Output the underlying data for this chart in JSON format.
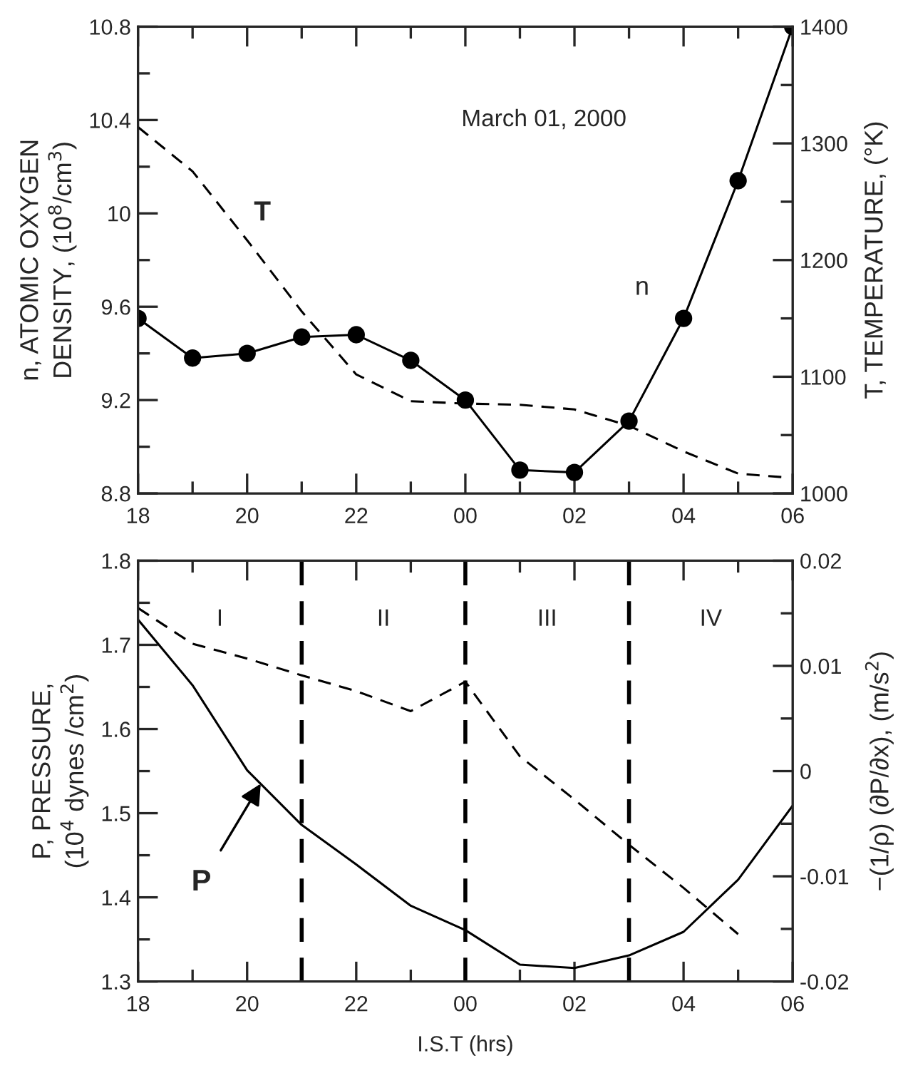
{
  "chart_data": [
    {
      "type": "line",
      "ylabel": "n, ATOMIC OXYGEN\nDENSITY, (10$^{8}$/cm$^{3}$)",
      "y2label": "T, TEMPERATURE, (°K)",
      "x": [
        "2000-03-01T18:00",
        "2000-03-01T19:00",
        "2000-03-01T20:00",
        "2000-03-01T21:00",
        "2000-03-01T22:00",
        "2000-03-01T23:00",
        "2000-03-02T00:00",
        "2000-03-02T01:00",
        "2000-03-02T02:00",
        "2000-03-02T03:00",
        "2000-03-02T04:00",
        "2000-03-02T05:00",
        "2000-03-02T06:00"
      ],
      "series": [
        {
          "color": "#000000",
          "marker": "circle",
          "line_style": "solid",
          "values": [
            9.55,
            9.38,
            9.4,
            9.47,
            9.48,
            9.37,
            9.2,
            8.9,
            8.89,
            9.11,
            9.55,
            10.14,
            10.8
          ]
        },
        {
          "color": "#000000",
          "marker": "none",
          "line_style": "dashed",
          "axis": "y2",
          "x": [
            "2000-03-01T18:00",
            "2000-03-01T19:00",
            "2000-03-01T20:00",
            "2000-03-01T21:00",
            "2000-03-01T22:00",
            "2000-03-01T23:00",
            "2000-03-02T00:00",
            "2000-03-02T01:00",
            "2000-03-02T02:00",
            "2000-03-02T03:00",
            "2000-03-02T04:00",
            "2000-03-02T05:00",
            "2000-03-02T05:48"
          ],
          "values": [
            1314,
            1276,
            1217,
            1156,
            1102,
            1079,
            1077,
            1076,
            1072,
            1058,
            1036,
            1017,
            1014
          ]
        }
      ],
      "xlim": [
        "2000-03-01T18:00",
        "2000-03-02T06:00"
      ],
      "xticks": [
        {
          "value": "2000-03-01T18:00",
          "label": "18"
        },
        {
          "value": "2000-03-01T19:00",
          "label": null
        },
        {
          "value": "2000-03-01T20:00",
          "label": "20"
        },
        {
          "value": "2000-03-01T21:00",
          "label": null
        },
        {
          "value": "2000-03-01T22:00",
          "label": "22"
        },
        {
          "value": "2000-03-01T23:00",
          "label": null
        },
        {
          "value": "2000-03-02T00:00",
          "label": "00"
        },
        {
          "value": "2000-03-02T01:00",
          "label": null
        },
        {
          "value": "2000-03-02T02:00",
          "label": "02"
        },
        {
          "value": "2000-03-02T03:00",
          "label": null
        },
        {
          "value": "2000-03-02T04:00",
          "label": "04"
        },
        {
          "value": "2000-03-02T05:00",
          "label": null
        },
        {
          "value": "2000-03-02T06:00",
          "label": "06"
        }
      ],
      "ylim": [
        8.8,
        10.8
      ],
      "yticks": [
        8.8,
        {
          "value": 9.0,
          "label": null
        },
        9.2,
        {
          "value": 9.4,
          "label": null
        },
        9.6,
        {
          "value": 9.8,
          "label": null
        },
        10,
        {
          "value": 10.2,
          "label": null
        },
        10.4,
        {
          "value": 10.6,
          "label": null
        },
        10.8
      ],
      "y2lim": [
        1000,
        1400
      ],
      "y2ticks": [
        1000,
        {
          "value": 1050,
          "label": null
        },
        1100,
        {
          "value": 1150,
          "label": null
        },
        1200,
        {
          "value": 1250,
          "label": null
        },
        1300,
        {
          "value": 1350,
          "label": null
        },
        1400
      ],
      "annotations": [
        "March 01, 2000",
        "T",
        "n"
      ],
      "grid": false,
      "legend": false
    },
    {
      "type": "line",
      "xlabel": "I.S.T (hrs)",
      "ylabel": "P, PRESSURE,\n(10$^{4}$ dynes /cm$^{2}$)",
      "y2label": "−(1/ρ) (∂P/∂x), (m/s$^{2}$)",
      "x": [
        "2000-03-01T18:00",
        "2000-03-01T19:00",
        "2000-03-01T20:00",
        "2000-03-01T21:00",
        "2000-03-01T22:00",
        "2000-03-01T23:00",
        "2000-03-02T00:00",
        "2000-03-02T01:00",
        "2000-03-02T02:00",
        "2000-03-02T03:00",
        "2000-03-02T04:00",
        "2000-03-02T05:00",
        "2000-03-02T06:00"
      ],
      "series": [
        {
          "color": "#000000",
          "marker": "none",
          "line_style": "solid",
          "values": [
            1.73,
            1.652,
            1.551,
            1.486,
            1.439,
            1.39,
            1.361,
            1.32,
            1.316,
            1.331,
            1.359,
            1.421,
            1.509
          ]
        },
        {
          "color": "#000000",
          "marker": "none",
          "line_style": "dashed",
          "axis": "y2",
          "x": [
            "2000-03-01T18:00",
            "2000-03-01T19:00",
            "2000-03-01T20:00",
            "2000-03-01T21:00",
            "2000-03-01T22:00",
            "2000-03-01T23:00",
            "2000-03-02T00:00",
            "2000-03-02T01:00",
            "2000-03-02T02:00",
            "2000-03-02T03:00",
            "2000-03-02T04:00",
            "2000-03-02T05:00"
          ],
          "values": [
            0.0155,
            0.0121,
            0.0107,
            0.0091,
            0.0076,
            0.0057,
            0.0085,
            0.0014,
            -0.0027,
            -0.007,
            -0.0111,
            -0.0155
          ]
        }
      ],
      "xlim": [
        "2000-03-01T18:00",
        "2000-03-02T06:00"
      ],
      "xticks": [
        {
          "value": "2000-03-01T18:00",
          "label": "18"
        },
        {
          "value": "2000-03-01T19:00",
          "label": null
        },
        {
          "value": "2000-03-01T20:00",
          "label": "20"
        },
        {
          "value": "2000-03-01T21:00",
          "label": null
        },
        {
          "value": "2000-03-01T22:00",
          "label": "22"
        },
        {
          "value": "2000-03-01T23:00",
          "label": null
        },
        {
          "value": "2000-03-02T00:00",
          "label": "00"
        },
        {
          "value": "2000-03-02T01:00",
          "label": null
        },
        {
          "value": "2000-03-02T02:00",
          "label": "02"
        },
        {
          "value": "2000-03-02T03:00",
          "label": null
        },
        {
          "value": "2000-03-02T04:00",
          "label": "04"
        },
        {
          "value": "2000-03-02T05:00",
          "label": null
        },
        {
          "value": "2000-03-02T06:00",
          "label": "06"
        }
      ],
      "ylim": [
        1.3,
        1.8
      ],
      "yticks": [
        1.3,
        {
          "value": 1.35,
          "label": null
        },
        1.4,
        {
          "value": 1.45,
          "label": null
        },
        1.5,
        {
          "value": 1.55,
          "label": null
        },
        1.6,
        {
          "value": 1.65,
          "label": null
        },
        1.7,
        {
          "value": 1.75,
          "label": null
        },
        1.8
      ],
      "y2lim": [
        -0.02,
        0.02
      ],
      "y2ticks": [
        -0.02,
        {
          "value": -0.015,
          "label": null
        },
        -0.01,
        {
          "value": -0.005,
          "label": null
        },
        0,
        {
          "value": 0.005,
          "label": null
        },
        0.01,
        {
          "value": 0.015,
          "label": null
        },
        0.02
      ],
      "ref_lines": [
        {
          "axis": "x",
          "value": "2000-03-01T21:00",
          "color": "#000000",
          "line_style": "dashed"
        },
        {
          "axis": "x",
          "value": "2000-03-02T00:00",
          "color": "#000000",
          "line_style": "dashed"
        },
        {
          "axis": "x",
          "value": "2000-03-02T03:00",
          "color": "#000000",
          "line_style": "dashed"
        }
      ],
      "annotations": [
        "I",
        "II",
        "III",
        "IV",
        {
          "text": "P",
          "x": "2000-03-01T20:15",
          "y": 1.535
        }
      ],
      "grid": false,
      "legend": false
    }
  ]
}
